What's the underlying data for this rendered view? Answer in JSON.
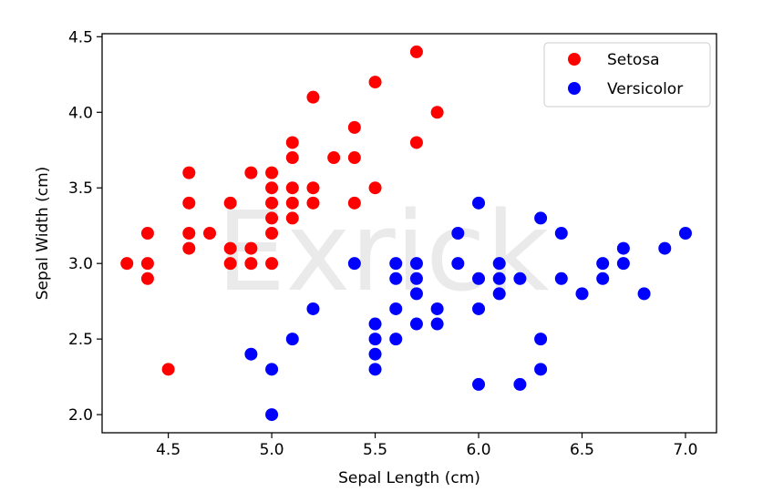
{
  "watermark": "Exrick",
  "chart_data": {
    "type": "scatter",
    "title": "",
    "xlabel": "Sepal Length (cm)",
    "ylabel": "Sepal Width (cm)",
    "xlim": [
      4.18,
      7.15
    ],
    "ylim": [
      1.88,
      4.52
    ],
    "xticks": [
      4.5,
      5.0,
      5.5,
      6.0,
      6.5,
      7.0
    ],
    "xtick_labels": [
      "4.5",
      "5.0",
      "5.5",
      "6.0",
      "6.5",
      "7.0"
    ],
    "yticks": [
      2.0,
      2.5,
      3.0,
      3.5,
      4.0,
      4.5
    ],
    "ytick_labels": [
      "2.0",
      "2.5",
      "3.0",
      "3.5",
      "4.0",
      "4.5"
    ],
    "grid": false,
    "legend_position": "top-right",
    "series": [
      {
        "name": "Setosa",
        "color": "#ff0000",
        "points": [
          [
            4.3,
            3.0
          ],
          [
            4.4,
            3.2
          ],
          [
            4.4,
            3.0
          ],
          [
            4.4,
            2.9
          ],
          [
            4.5,
            2.3
          ],
          [
            4.6,
            3.6
          ],
          [
            4.6,
            3.4
          ],
          [
            4.6,
            3.2
          ],
          [
            4.6,
            3.1
          ],
          [
            4.7,
            3.2
          ],
          [
            4.8,
            3.4
          ],
          [
            4.8,
            3.1
          ],
          [
            4.8,
            3.0
          ],
          [
            4.9,
            3.6
          ],
          [
            4.9,
            3.1
          ],
          [
            4.9,
            3.0
          ],
          [
            5.0,
            3.6
          ],
          [
            5.0,
            3.5
          ],
          [
            5.0,
            3.4
          ],
          [
            5.0,
            3.3
          ],
          [
            5.0,
            3.2
          ],
          [
            5.0,
            3.0
          ],
          [
            5.1,
            3.8
          ],
          [
            5.1,
            3.7
          ],
          [
            5.1,
            3.5
          ],
          [
            5.1,
            3.4
          ],
          [
            5.1,
            3.3
          ],
          [
            5.2,
            4.1
          ],
          [
            5.2,
            3.5
          ],
          [
            5.2,
            3.4
          ],
          [
            5.3,
            3.7
          ],
          [
            5.4,
            3.9
          ],
          [
            5.4,
            3.7
          ],
          [
            5.4,
            3.4
          ],
          [
            5.5,
            4.2
          ],
          [
            5.5,
            3.5
          ],
          [
            5.7,
            4.4
          ],
          [
            5.7,
            3.8
          ],
          [
            5.8,
            4.0
          ]
        ]
      },
      {
        "name": "Versicolor",
        "color": "#0000ff",
        "points": [
          [
            4.9,
            2.4
          ],
          [
            5.0,
            2.3
          ],
          [
            5.0,
            2.0
          ],
          [
            5.1,
            2.5
          ],
          [
            5.2,
            2.7
          ],
          [
            5.4,
            3.0
          ],
          [
            5.5,
            2.6
          ],
          [
            5.5,
            2.5
          ],
          [
            5.5,
            2.4
          ],
          [
            5.5,
            2.3
          ],
          [
            5.6,
            3.0
          ],
          [
            5.6,
            2.9
          ],
          [
            5.6,
            2.7
          ],
          [
            5.6,
            2.5
          ],
          [
            5.7,
            3.0
          ],
          [
            5.7,
            2.9
          ],
          [
            5.7,
            2.8
          ],
          [
            5.7,
            2.6
          ],
          [
            5.8,
            2.7
          ],
          [
            5.8,
            2.6
          ],
          [
            5.9,
            3.2
          ],
          [
            5.9,
            3.0
          ],
          [
            6.0,
            3.4
          ],
          [
            6.0,
            2.9
          ],
          [
            6.0,
            2.7
          ],
          [
            6.0,
            2.2
          ],
          [
            6.1,
            3.0
          ],
          [
            6.1,
            2.9
          ],
          [
            6.1,
            2.8
          ],
          [
            6.2,
            2.9
          ],
          [
            6.2,
            2.2
          ],
          [
            6.3,
            3.3
          ],
          [
            6.3,
            2.5
          ],
          [
            6.3,
            2.3
          ],
          [
            6.4,
            3.2
          ],
          [
            6.4,
            2.9
          ],
          [
            6.5,
            2.8
          ],
          [
            6.6,
            3.0
          ],
          [
            6.6,
            2.9
          ],
          [
            6.7,
            3.1
          ],
          [
            6.7,
            3.0
          ],
          [
            6.8,
            2.8
          ],
          [
            6.9,
            3.1
          ],
          [
            7.0,
            3.2
          ]
        ]
      }
    ]
  }
}
